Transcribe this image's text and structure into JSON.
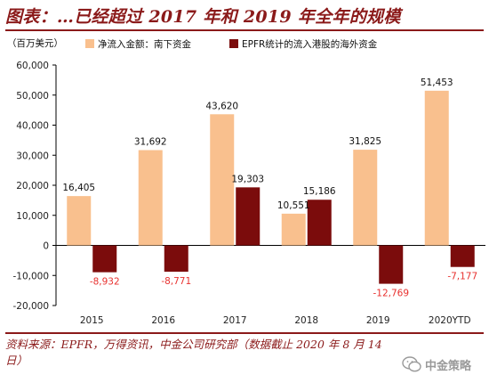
{
  "title": "图表：…已经超过 2017 年和 2019 年全年的规模",
  "source": "资料来源：EPFR，万得资讯，中金公司研究部（数据截止 2020 年 8 月 14 日）",
  "watermark": "中金策略",
  "icons": {
    "watermark": "wechat-icon"
  },
  "colors": {
    "series1": "#f9c08e",
    "series2": "#7b0c0c",
    "negative_label": "#e8312f",
    "accent": "#8b1a1a"
  },
  "chart_data": {
    "type": "bar",
    "unit_label": "（百万美元）",
    "categories": [
      "2015",
      "2016",
      "2017",
      "2018",
      "2019",
      "2020YTD"
    ],
    "series": [
      {
        "name": "净流入金额：南下资金",
        "values": [
          16405,
          31692,
          43620,
          10551,
          31825,
          51453
        ],
        "labels": [
          "16,405",
          "31,692",
          "43,620",
          "10,551",
          "31,825",
          "51,453"
        ]
      },
      {
        "name": "EPFR统计的流入港股的海外资金",
        "values": [
          -8932,
          -8771,
          19303,
          15186,
          -12769,
          -7177
        ],
        "labels": [
          "-8,932",
          "-8,771",
          "19,303",
          "15,186",
          "-12,769",
          "-7,177"
        ]
      }
    ],
    "ylim": [
      -20000,
      60000
    ],
    "yticks": [
      -20000,
      -10000,
      0,
      10000,
      20000,
      30000,
      40000,
      50000,
      60000
    ],
    "ytick_labels": [
      "-20,000",
      "-10,000",
      "0",
      "10,000",
      "20,000",
      "30,000",
      "40,000",
      "50,000",
      "60,000"
    ],
    "legend_position": "top",
    "grid": false
  }
}
